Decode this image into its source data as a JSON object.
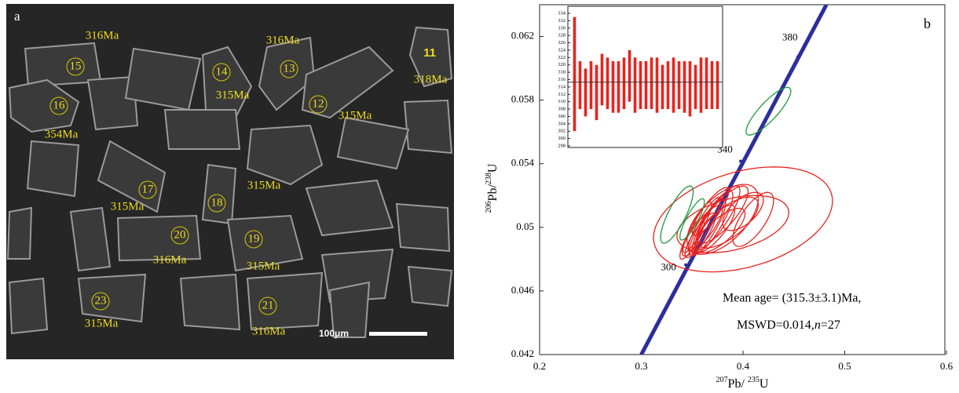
{
  "panel_a": {
    "label": "a",
    "spots": [
      {
        "n": "15",
        "age": "316Ma"
      },
      {
        "n": "16",
        "age": "354Ma"
      },
      {
        "n": "14",
        "age": "315Ma"
      },
      {
        "n": "13",
        "age": "316Ma"
      },
      {
        "n": "11",
        "age": "318Ma"
      },
      {
        "n": "12",
        "age": "315Ma"
      },
      {
        "n": "17",
        "age": "315Ma"
      },
      {
        "n": "18",
        "age": "315Ma"
      },
      {
        "n": "20",
        "age": "316Ma"
      },
      {
        "n": "19",
        "age": "315Ma"
      },
      {
        "n": "23",
        "age": "315Ma"
      },
      {
        "n": "21",
        "age": "316Ma"
      }
    ],
    "scale_bar": "100μm"
  },
  "chart_data": {
    "type": "concordia",
    "panel_label": "b",
    "x_label": [
      "207",
      "Pb/ ",
      "235",
      "U"
    ],
    "y_label": [
      "206",
      "Pb/",
      "238",
      "U"
    ],
    "xlim": [
      0.2,
      0.6
    ],
    "xticks": [
      0.2,
      0.3,
      0.4,
      0.5,
      0.6
    ],
    "ylim": [
      0.042,
      0.064
    ],
    "yticks": [
      0.042,
      0.046,
      0.05,
      0.054,
      0.058,
      0.062
    ],
    "concordia": {
      "color": "#2b2f9c",
      "x": [
        0.3,
        0.482
      ],
      "y": [
        0.042,
        0.064
      ]
    },
    "age_marks": [
      {
        "age": 300,
        "x": 0.3437,
        "y": 0.04764
      },
      {
        "age": 340,
        "x": 0.3977,
        "y": 0.05416
      },
      {
        "age": 380,
        "x": 0.4539,
        "y": 0.06072
      }
    ],
    "ellipses": [
      {
        "color": "#e8231f",
        "x": 0.4,
        "y": 0.0505,
        "sx": 0.088,
        "sy": 0.0033,
        "rho": 0.35
      },
      {
        "color": "#e8231f",
        "x": 0.39,
        "y": 0.0502,
        "sx": 0.055,
        "sy": 0.0018,
        "rho": 0.4
      },
      {
        "color": "#e8231f",
        "x": 0.38,
        "y": 0.0505,
        "sx": 0.035,
        "sy": 0.0022,
        "rho": 0.6
      },
      {
        "color": "#e8231f",
        "x": 0.36,
        "y": 0.0498,
        "sx": 0.02,
        "sy": 0.0016,
        "rho": 0.85
      },
      {
        "color": "#e8231f",
        "x": 0.365,
        "y": 0.05,
        "sx": 0.018,
        "sy": 0.0018,
        "rho": 0.85
      },
      {
        "color": "#e8231f",
        "x": 0.37,
        "y": 0.0503,
        "sx": 0.02,
        "sy": 0.002,
        "rho": 0.85
      },
      {
        "color": "#e8231f",
        "x": 0.375,
        "y": 0.0506,
        "sx": 0.022,
        "sy": 0.002,
        "rho": 0.85
      },
      {
        "color": "#e8231f",
        "x": 0.358,
        "y": 0.0495,
        "sx": 0.015,
        "sy": 0.0014,
        "rho": 0.85
      },
      {
        "color": "#e8231f",
        "x": 0.38,
        "y": 0.0508,
        "sx": 0.025,
        "sy": 0.0018,
        "rho": 0.8
      },
      {
        "color": "#e8231f",
        "x": 0.372,
        "y": 0.0499,
        "sx": 0.02,
        "sy": 0.0015,
        "rho": 0.8
      },
      {
        "color": "#e8231f",
        "x": 0.362,
        "y": 0.0502,
        "sx": 0.016,
        "sy": 0.0017,
        "rho": 0.9
      },
      {
        "color": "#e8231f",
        "x": 0.385,
        "y": 0.0503,
        "sx": 0.03,
        "sy": 0.0016,
        "rho": 0.7
      },
      {
        "color": "#e8231f",
        "x": 0.368,
        "y": 0.051,
        "sx": 0.018,
        "sy": 0.0015,
        "rho": 0.85
      },
      {
        "color": "#e8231f",
        "x": 0.355,
        "y": 0.05,
        "sx": 0.014,
        "sy": 0.0016,
        "rho": 0.9
      },
      {
        "color": "#e8231f",
        "x": 0.378,
        "y": 0.0498,
        "sx": 0.024,
        "sy": 0.0014,
        "rho": 0.75
      },
      {
        "color": "#e8231f",
        "x": 0.4,
        "y": 0.051,
        "sx": 0.02,
        "sy": 0.0012,
        "rho": 0.6
      },
      {
        "color": "#e8231f",
        "x": 0.41,
        "y": 0.0505,
        "sx": 0.02,
        "sy": 0.0017,
        "rho": 0.7
      },
      {
        "color": "#e8231f",
        "x": 0.35,
        "y": 0.0493,
        "sx": 0.012,
        "sy": 0.0013,
        "rho": 0.85
      },
      {
        "color": "#1f9a3a",
        "x": 0.425,
        "y": 0.0573,
        "sx": 0.022,
        "sy": 0.0015,
        "rho": 0.85
      },
      {
        "color": "#1f9a3a",
        "x": 0.335,
        "y": 0.0508,
        "sx": 0.016,
        "sy": 0.0018,
        "rho": 0.8
      },
      {
        "color": "#1f9a3a",
        "x": 0.35,
        "y": 0.0505,
        "sx": 0.012,
        "sy": 0.0013,
        "rho": 0.85
      }
    ],
    "annotation": {
      "line1": "Mean age= (315.3±3.1)Ma,",
      "line2": [
        "MSWD=0.014,",
        "n",
        "=27"
      ]
    },
    "inset": {
      "type": "bar",
      "color": "#e8231f",
      "ylim": [
        298,
        334
      ],
      "yticks": [
        298,
        300,
        302,
        304,
        306,
        308,
        310,
        312,
        314,
        316,
        318,
        320,
        322,
        324,
        326,
        328,
        330,
        332,
        334
      ],
      "mean_line": 315.3,
      "values": [
        317.5,
        314.5,
        312.5,
        314.5,
        312.5,
        316,
        315,
        314,
        314,
        315,
        317,
        314.5,
        314.5,
        314.5,
        315,
        314.5,
        314,
        314.5,
        314.5,
        314.5,
        314,
        313.5,
        314,
        314.5,
        315,
        314.5,
        314.5
      ],
      "errors": [
        15.5,
        6.5,
        6.5,
        6.5,
        7.5,
        7,
        7,
        7,
        7,
        7,
        7,
        7.5,
        6.5,
        6.5,
        7,
        7.5,
        6,
        6.5,
        7.5,
        6.5,
        7,
        7.5,
        6,
        7.5,
        7,
        6.5,
        6.5
      ]
    }
  }
}
